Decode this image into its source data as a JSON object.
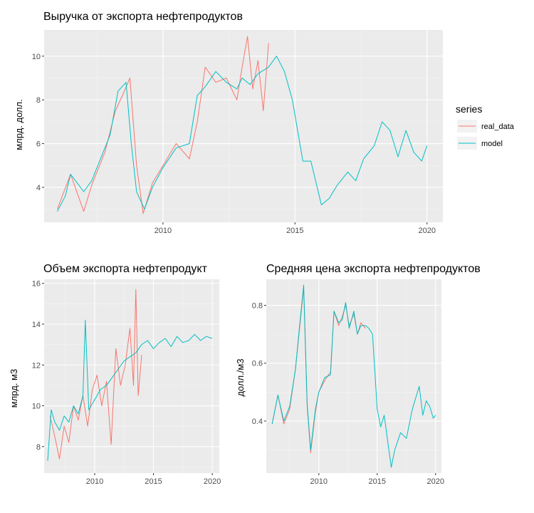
{
  "legend": {
    "title": "series",
    "entries": [
      {
        "label": "real_data",
        "color": "#F8766D"
      },
      {
        "label": "model",
        "color": "#00BFC4"
      }
    ]
  },
  "chart_data": [
    {
      "type": "line",
      "title": "Выручка от экспорта нефтепродуктов",
      "ylabel": "млрд. долл.",
      "xlabel": "",
      "xlim": [
        2005.5,
        2020.6
      ],
      "ylim": [
        2.4,
        11.2
      ],
      "xticks": [
        2010,
        2015,
        2020
      ],
      "yticks": [
        4,
        6,
        8,
        10
      ],
      "grid": true,
      "series": [
        {
          "name": "real_data",
          "x": [
            2006.0,
            2006.5,
            2007.0,
            2007.3,
            2007.8,
            2008.2,
            2008.5,
            2008.75,
            2009.0,
            2009.25,
            2009.6,
            2010.0,
            2010.5,
            2011.0,
            2011.3,
            2011.6,
            2012.0,
            2012.4,
            2012.8,
            2013.0,
            2013.2,
            2013.4,
            2013.6,
            2013.8,
            2014.0
          ],
          "y": [
            3.0,
            4.6,
            2.9,
            4.1,
            5.6,
            7.5,
            8.3,
            9.0,
            5.0,
            2.8,
            4.2,
            5.0,
            6.0,
            5.3,
            7.0,
            9.5,
            8.8,
            9.0,
            8.0,
            9.5,
            10.9,
            8.5,
            9.8,
            7.5,
            10.6
          ]
        },
        {
          "name": "model",
          "x": [
            2006.0,
            2006.3,
            2006.5,
            2007.0,
            2007.3,
            2007.6,
            2008.0,
            2008.3,
            2008.6,
            2008.8,
            2009.0,
            2009.3,
            2009.6,
            2010.0,
            2010.5,
            2011.0,
            2011.3,
            2011.6,
            2012.0,
            2012.4,
            2012.8,
            2013.0,
            2013.3,
            2013.6,
            2014.0,
            2014.3,
            2014.6,
            2014.9,
            2015.3,
            2015.6,
            2016.0,
            2016.3,
            2016.6,
            2017.0,
            2017.3,
            2017.6,
            2018.0,
            2018.3,
            2018.6,
            2018.9,
            2019.2,
            2019.5,
            2019.8,
            2020.0
          ],
          "y": [
            2.9,
            3.6,
            4.6,
            3.8,
            4.3,
            5.2,
            6.4,
            8.4,
            8.8,
            6.0,
            3.8,
            3.0,
            4.0,
            4.9,
            5.8,
            6.0,
            8.2,
            8.6,
            9.3,
            8.8,
            8.5,
            9.0,
            8.7,
            9.2,
            9.5,
            10.0,
            9.3,
            8.0,
            5.2,
            5.2,
            3.2,
            3.5,
            4.1,
            4.7,
            4.3,
            5.3,
            5.9,
            7.0,
            6.6,
            5.4,
            6.6,
            5.6,
            5.2,
            5.9
          ]
        }
      ]
    },
    {
      "type": "line",
      "title": "Объем экспорта нефтепродукт",
      "ylabel": "млрд. м3",
      "xlabel": "",
      "xlim": [
        2005.7,
        2020.6
      ],
      "ylim": [
        6.7,
        16.2
      ],
      "xticks": [
        2010,
        2015,
        2020
      ],
      "yticks": [
        8,
        10,
        12,
        14,
        16
      ],
      "grid": true,
      "series": [
        {
          "name": "real_data",
          "x": [
            2006.2,
            2006.6,
            2007.0,
            2007.4,
            2007.8,
            2008.2,
            2008.6,
            2009.0,
            2009.4,
            2009.8,
            2010.2,
            2010.6,
            2011.0,
            2011.4,
            2011.8,
            2012.2,
            2012.6,
            2013.0,
            2013.3,
            2013.5,
            2013.7,
            2014.0
          ],
          "y": [
            9.5,
            8.5,
            7.4,
            9.0,
            8.2,
            10.0,
            9.3,
            10.5,
            9.0,
            10.8,
            11.5,
            10.0,
            11.2,
            8.1,
            12.8,
            11.0,
            12.0,
            13.8,
            11.0,
            15.7,
            10.5,
            12.5
          ]
        },
        {
          "name": "model",
          "x": [
            2006.0,
            2006.3,
            2006.6,
            2007.0,
            2007.4,
            2007.8,
            2008.2,
            2008.6,
            2009.0,
            2009.2,
            2009.5,
            2010.0,
            2010.5,
            2011.0,
            2011.5,
            2012.0,
            2012.5,
            2013.0,
            2013.5,
            2014.0,
            2014.5,
            2015.0,
            2015.5,
            2016.0,
            2016.5,
            2017.0,
            2017.5,
            2018.0,
            2018.5,
            2019.0,
            2019.5,
            2020.0
          ],
          "y": [
            7.3,
            9.8,
            9.2,
            8.8,
            9.5,
            9.2,
            10.0,
            9.6,
            10.5,
            14.2,
            9.8,
            10.3,
            10.8,
            11.0,
            11.4,
            11.8,
            12.2,
            12.4,
            12.6,
            13.0,
            13.2,
            12.8,
            13.1,
            13.3,
            12.9,
            13.4,
            13.1,
            13.2,
            13.5,
            13.2,
            13.4,
            13.3
          ]
        }
      ]
    },
    {
      "type": "line",
      "title": "Средняя цена экспорта нефтепродуктов",
      "ylabel": "долл./м3",
      "xlabel": "",
      "xlim": [
        2005.5,
        2020.5
      ],
      "ylim": [
        0.22,
        0.89
      ],
      "xticks": [
        2010,
        2015,
        2020
      ],
      "yticks": [
        0.4,
        0.6,
        0.8
      ],
      "grid": true,
      "series": [
        {
          "name": "real_data",
          "x": [
            2006.0,
            2006.5,
            2007.0,
            2007.5,
            2008.0,
            2008.4,
            2008.7,
            2009.0,
            2009.3,
            2009.7,
            2010.0,
            2010.5,
            2011.0,
            2011.3,
            2011.7,
            2012.0,
            2012.3,
            2012.6,
            2013.0,
            2013.3,
            2013.6,
            2014.0
          ],
          "y": [
            0.39,
            0.49,
            0.39,
            0.44,
            0.58,
            0.74,
            0.86,
            0.45,
            0.29,
            0.43,
            0.5,
            0.54,
            0.57,
            0.78,
            0.73,
            0.76,
            0.8,
            0.73,
            0.77,
            0.7,
            0.74,
            0.72
          ]
        },
        {
          "name": "model",
          "x": [
            2006.0,
            2006.5,
            2007.0,
            2007.5,
            2008.0,
            2008.4,
            2008.7,
            2009.0,
            2009.3,
            2009.7,
            2010.0,
            2010.5,
            2011.0,
            2011.3,
            2011.7,
            2012.0,
            2012.3,
            2012.6,
            2013.0,
            2013.3,
            2013.6,
            2014.0,
            2014.3,
            2014.6,
            2015.0,
            2015.3,
            2015.6,
            2016.0,
            2016.2,
            2016.5,
            2017.0,
            2017.5,
            2018.0,
            2018.3,
            2018.6,
            2018.9,
            2019.2,
            2019.5,
            2019.8,
            2020.0
          ],
          "y": [
            0.39,
            0.49,
            0.4,
            0.45,
            0.58,
            0.75,
            0.87,
            0.46,
            0.3,
            0.44,
            0.5,
            0.55,
            0.56,
            0.78,
            0.74,
            0.75,
            0.81,
            0.72,
            0.78,
            0.7,
            0.73,
            0.73,
            0.72,
            0.7,
            0.44,
            0.38,
            0.42,
            0.3,
            0.24,
            0.3,
            0.36,
            0.34,
            0.44,
            0.48,
            0.52,
            0.42,
            0.47,
            0.45,
            0.41,
            0.42
          ]
        }
      ]
    }
  ]
}
